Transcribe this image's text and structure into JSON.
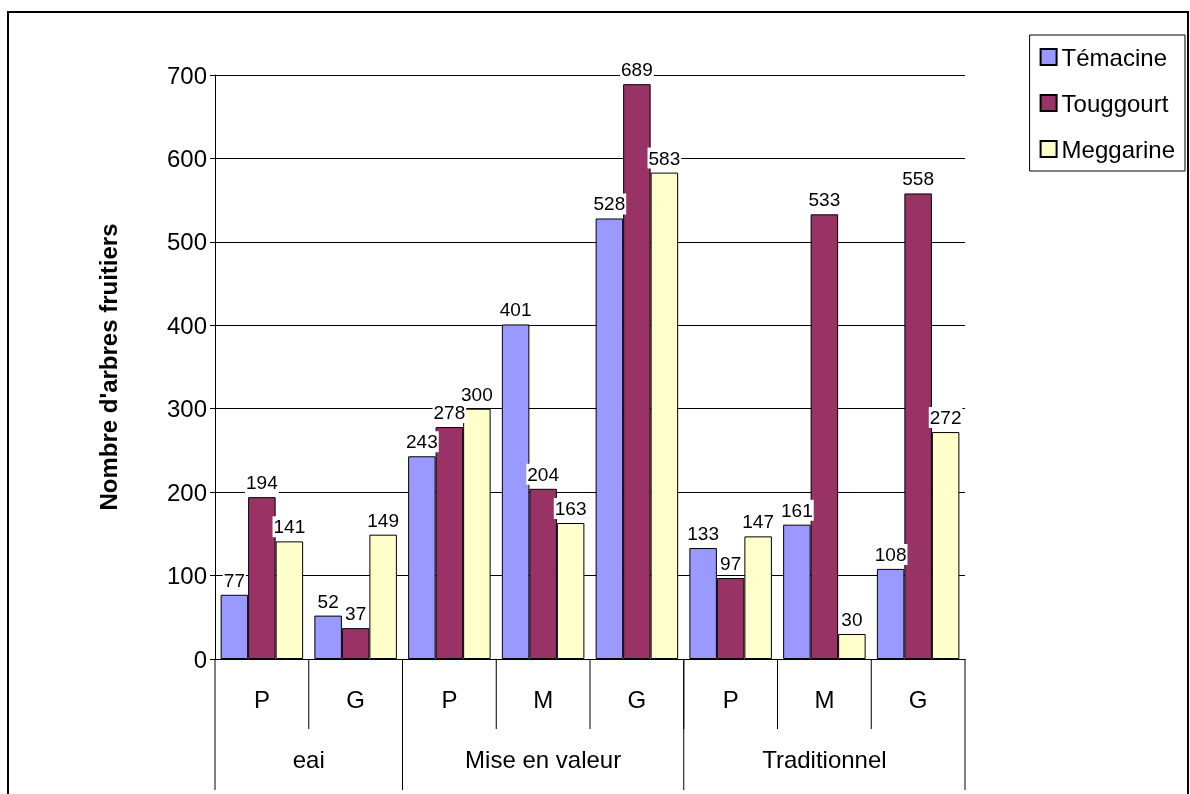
{
  "chart_data": {
    "type": "bar",
    "ylabel": "Nombre d'arbres fruitiers",
    "categories": [
      "P",
      "G",
      "P",
      "M",
      "G",
      "P",
      "M",
      "G"
    ],
    "series": [
      {
        "name": "Témacine",
        "color": "#9999ff",
        "values": [
          77,
          52,
          243,
          401,
          528,
          133,
          161,
          108
        ]
      },
      {
        "name": "Touggourt",
        "color": "#993366",
        "values": [
          194,
          37,
          278,
          204,
          689,
          97,
          533,
          558
        ]
      },
      {
        "name": "Meggarine",
        "color": "#ffffcc",
        "values": [
          141,
          149,
          300,
          163,
          583,
          147,
          30,
          272
        ]
      }
    ],
    "annotations": [
      "eai",
      "Mise en valeur",
      "Traditionnel"
    ],
    "ylim": [
      0,
      700
    ],
    "yticks": [
      0,
      100,
      200,
      300,
      400,
      500,
      600,
      700
    ],
    "grid": "y",
    "legend": "top right",
    "data_labels": true
  }
}
